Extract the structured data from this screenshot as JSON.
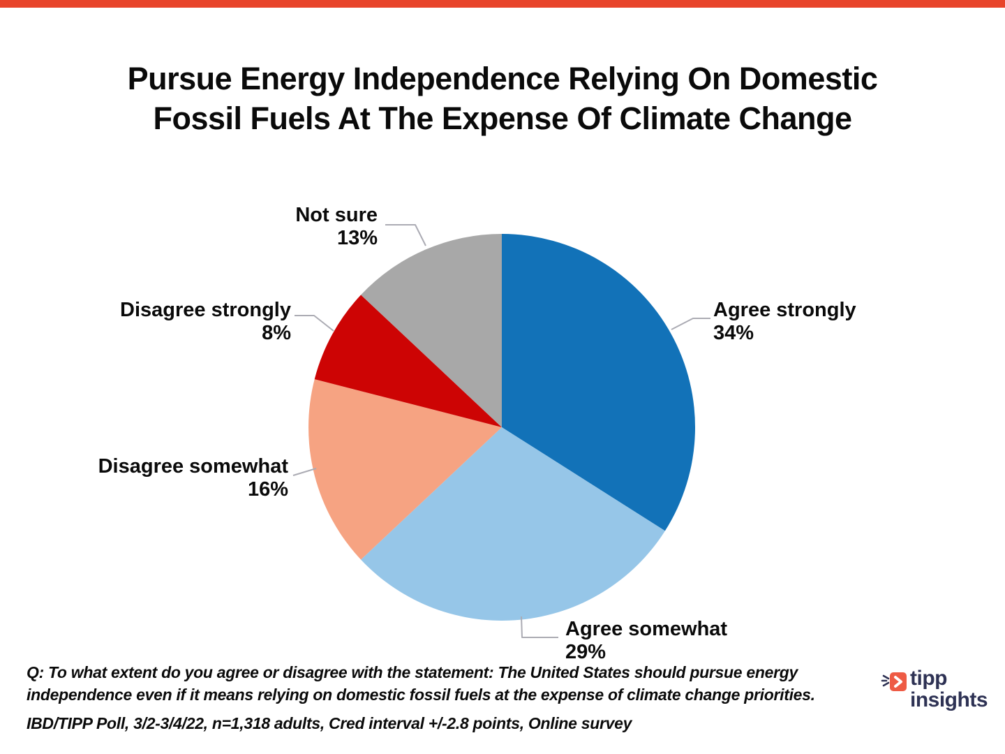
{
  "top_bar": {
    "color": "#E8442A"
  },
  "title": {
    "line1": "Pursue Energy Independence Relying On Domestic",
    "line2": "Fossil Fuels At The Expense Of Climate Change"
  },
  "chart_data": {
    "type": "pie",
    "title": "Pursue Energy Independence Relying On Domestic Fossil Fuels At The Expense Of Climate Change",
    "start_angle_deg": 0,
    "direction": "clockwise",
    "legend_position": "callout-labels",
    "leader_line_color": "#ABABB3",
    "slices": [
      {
        "label": "Agree strongly",
        "pct_label": "34%",
        "value": 34,
        "color": "#1272B8"
      },
      {
        "label": "Agree somewhat",
        "pct_label": "29%",
        "value": 29,
        "color": "#96C6E8"
      },
      {
        "label": "Disagree somewhat",
        "pct_label": "16%",
        "value": 16,
        "color": "#F6A382"
      },
      {
        "label": "Disagree strongly",
        "pct_label": "8%",
        "value": 8,
        "color": "#CD0404"
      },
      {
        "label": "Not sure",
        "pct_label": "13%",
        "value": 13,
        "color": "#A8A8A8"
      }
    ]
  },
  "footnote": {
    "line1": "Q:  To what extent do you agree or disagree with the statement: The United States should pursue energy",
    "line2": "independence even if it means relying on domestic fossil fuels at the expense of climate change priorities.",
    "line3": "IBD/TIPP Poll, 3/2-3/4/22, n=1,318 adults, Cred interval +/-2.8 points, Online survey"
  },
  "logo": {
    "word1": "tipp",
    "word2": "insights",
    "icon_color": "#EE5B45",
    "text_color": "#2E3254"
  }
}
